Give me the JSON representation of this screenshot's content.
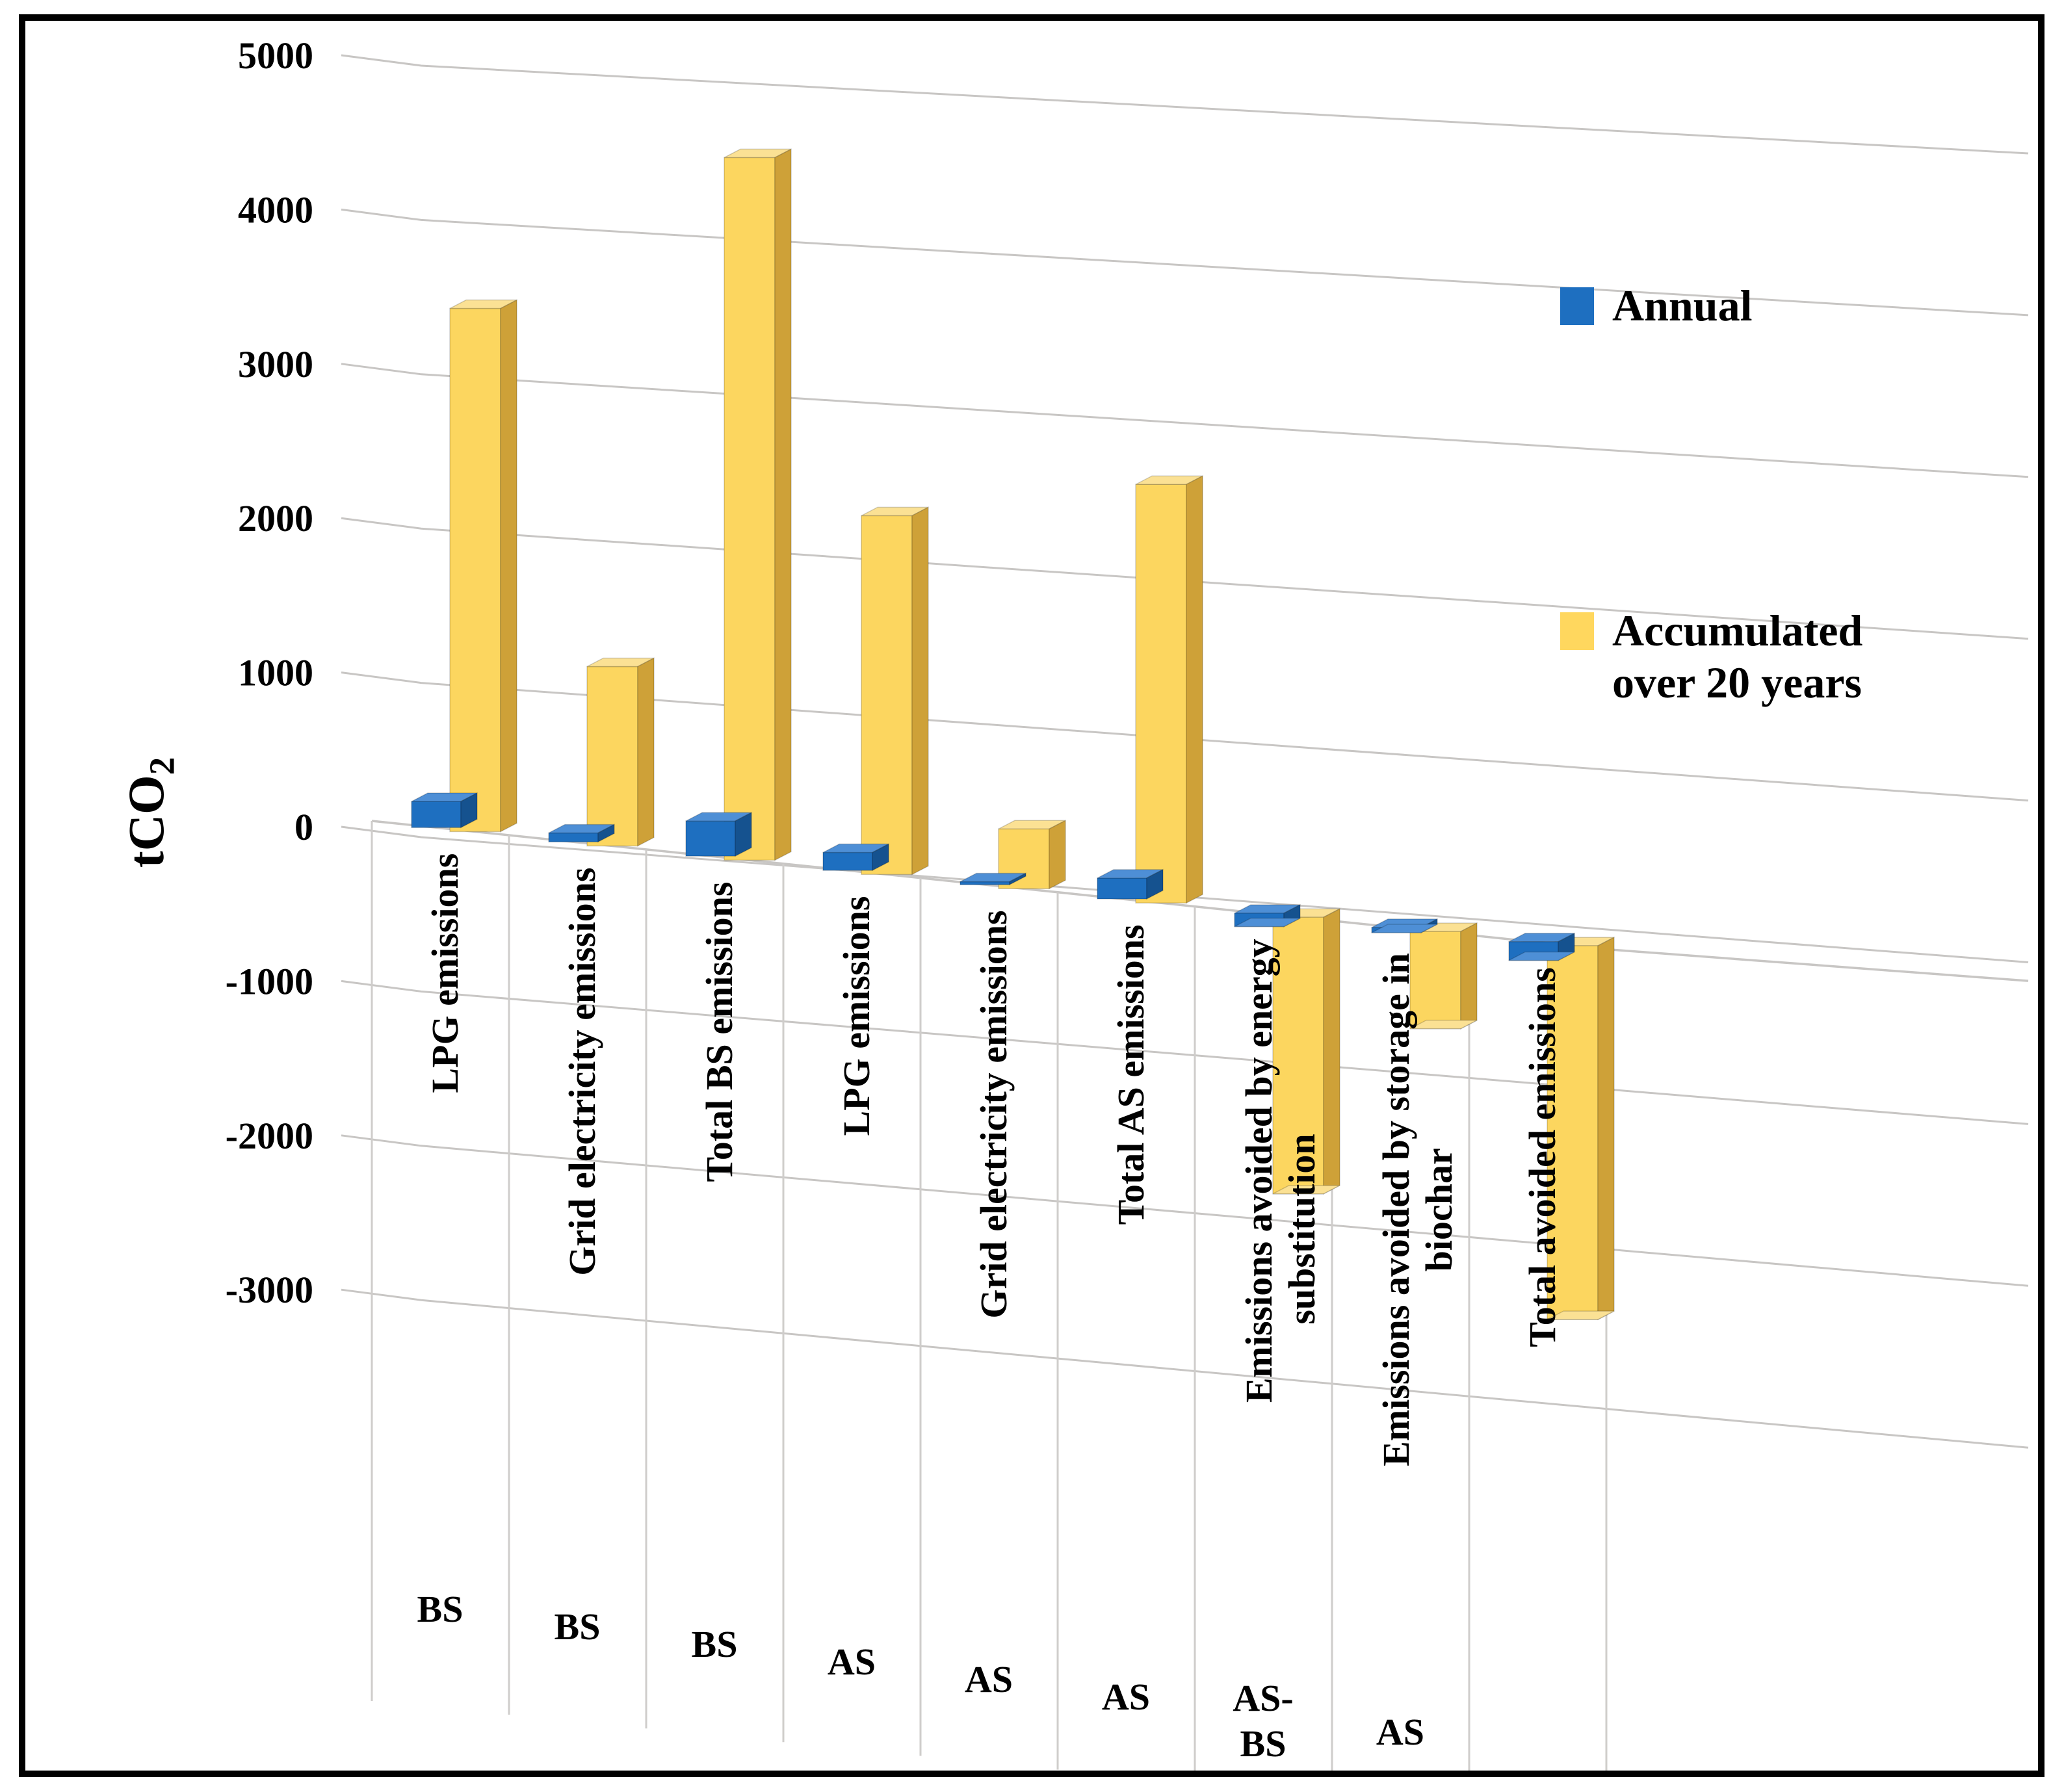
{
  "y_axis": {
    "title_base": "tCO",
    "title_sub": "2",
    "ticks": [
      5000,
      4000,
      3000,
      2000,
      1000,
      0,
      -1000,
      -2000,
      -3000
    ]
  },
  "legend": {
    "items": [
      {
        "label": "Annual",
        "color": "#1E6FC0"
      },
      {
        "label": "Accumulated over 20 years",
        "line1": "Accumulated",
        "line2": "over 20 years",
        "color": "#FFD75E"
      }
    ]
  },
  "chart_data": {
    "type": "bar",
    "subtype": "3d-clustered-column",
    "title": "",
    "xlabel": "",
    "ylabel": "tCO2",
    "ylim": [
      -3000,
      5000
    ],
    "grid": true,
    "legend_position": "right",
    "categories": [
      "LPG emissions",
      "Grid electricity emissions",
      "Total BS emissions",
      "LPG emissions",
      "Grid electricity emissions",
      "Total AS emissions",
      "Emissions avoided by energy substitution",
      "Emissions avoided by storage in biochar",
      "Total avoided emissions"
    ],
    "categories_wrapped": [
      [
        "LPG emissions"
      ],
      [
        "Grid electricity emissions"
      ],
      [
        "Total BS emissions"
      ],
      [
        "LPG emissions"
      ],
      [
        "Grid electricity emissions"
      ],
      [
        "Total AS emissions"
      ],
      [
        "Emissions avoided by energy",
        "substitution"
      ],
      [
        "Emissions avoided by storage in",
        "biochar"
      ],
      [
        "Total avoided emissions"
      ]
    ],
    "category_groups": [
      "BS",
      "BS",
      "BS",
      "AS",
      "AS",
      "AS",
      "AS-BS",
      "AS",
      ""
    ],
    "category_groups_wrapped": [
      [
        "BS"
      ],
      [
        "BS"
      ],
      [
        "BS"
      ],
      [
        "AS"
      ],
      [
        "AS"
      ],
      [
        "AS"
      ],
      [
        "AS-",
        "BS"
      ],
      [
        "AS"
      ],
      []
    ],
    "series": [
      {
        "name": "Annual",
        "values": [
          175,
          60,
          235,
          120,
          20,
          140,
          -90,
          -35,
          -125
        ]
      },
      {
        "name": "Accumulated over 20 years",
        "values": [
          3500,
          1200,
          4700,
          2400,
          400,
          2800,
          -1850,
          -650,
          -2500
        ]
      }
    ]
  },
  "colors": {
    "annual_front": "#1E6FC0",
    "annual_top": "#4E8FD6",
    "annual_side": "#15528F",
    "accumulated_front": "#FCD65F",
    "accumulated_top": "#FBE194",
    "accumulated_side": "#CEA138",
    "gridline": "#C8C6C4",
    "separator": "#CFCDCB",
    "frame": "#000000"
  }
}
